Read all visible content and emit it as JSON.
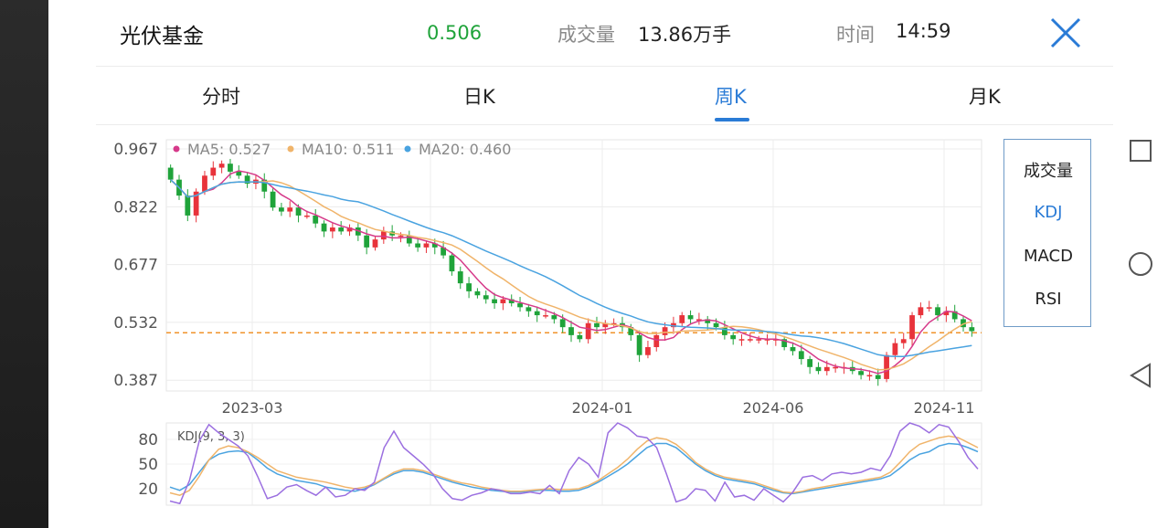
{
  "header": {
    "title": "光伏基金",
    "price": "0.506",
    "volume_label": "成交量",
    "volume_value": "13.86万手",
    "time_label": "时间",
    "time_value": "14:59"
  },
  "tabs": [
    {
      "label": "分时"
    },
    {
      "label": "日K"
    },
    {
      "label": "周K",
      "active": true
    },
    {
      "label": "月K"
    }
  ],
  "indicators": [
    {
      "label": "成交量"
    },
    {
      "label": "KDJ",
      "active": true
    },
    {
      "label": "MACD"
    },
    {
      "label": "RSI"
    }
  ],
  "colors": {
    "up": "#e8333b",
    "down": "#1fa33a",
    "ma5": "#d63a8a",
    "ma10": "#f0b46a",
    "ma20": "#4aa3e0",
    "k": "#4aa3e0",
    "d": "#f0b46a",
    "j": "#9b6fe0",
    "accent": "#2a7bd6",
    "ref_line": "#f0932b"
  },
  "chart_data": [
    {
      "type": "candlestick",
      "y_ticks": [
        "0.967",
        "0.822",
        "0.677",
        "0.532",
        "0.387"
      ],
      "ylim": [
        0.36,
        0.99
      ],
      "x_ticks": [
        "2023-03",
        "2024-01",
        "2024-06",
        "2024-11"
      ],
      "legend": [
        {
          "name": "MA5",
          "value": "0.527"
        },
        {
          "name": "MA10",
          "value": "0.511"
        },
        {
          "name": "MA20",
          "value": "0.460"
        }
      ],
      "reference_price": 0.506,
      "closes": [
        0.89,
        0.85,
        0.8,
        0.86,
        0.9,
        0.92,
        0.93,
        0.91,
        0.9,
        0.88,
        0.89,
        0.86,
        0.82,
        0.81,
        0.82,
        0.8,
        0.8,
        0.78,
        0.76,
        0.77,
        0.76,
        0.77,
        0.75,
        0.72,
        0.74,
        0.76,
        0.75,
        0.75,
        0.73,
        0.72,
        0.73,
        0.72,
        0.7,
        0.66,
        0.63,
        0.61,
        0.6,
        0.59,
        0.58,
        0.59,
        0.58,
        0.57,
        0.56,
        0.55,
        0.55,
        0.54,
        0.52,
        0.5,
        0.49,
        0.53,
        0.52,
        0.53,
        0.53,
        0.52,
        0.5,
        0.45,
        0.47,
        0.5,
        0.52,
        0.53,
        0.55,
        0.54,
        0.54,
        0.53,
        0.52,
        0.5,
        0.49,
        0.49,
        0.49,
        0.49,
        0.49,
        0.49,
        0.47,
        0.46,
        0.44,
        0.42,
        0.41,
        0.42,
        0.42,
        0.42,
        0.41,
        0.4,
        0.4,
        0.39,
        0.45,
        0.48,
        0.49,
        0.55,
        0.57,
        0.57,
        0.55,
        0.56,
        0.54,
        0.52,
        0.51
      ]
    },
    {
      "type": "line",
      "title": "KDJ(9, 3, 3)",
      "y_ticks": [
        "80",
        "50",
        "20"
      ],
      "ylim": [
        0,
        100
      ],
      "series": [
        {
          "name": "K",
          "values": [
            22,
            18,
            25,
            40,
            55,
            62,
            65,
            66,
            64,
            55,
            45,
            38,
            34,
            30,
            28,
            26,
            22,
            20,
            18,
            17,
            20,
            25,
            32,
            38,
            42,
            42,
            40,
            36,
            32,
            28,
            25,
            22,
            20,
            18,
            17,
            16,
            16,
            17,
            18,
            18,
            17,
            17,
            18,
            22,
            28,
            35,
            42,
            50,
            60,
            70,
            75,
            75,
            70,
            60,
            50,
            42,
            36,
            32,
            30,
            28,
            26,
            22,
            18,
            15,
            14,
            16,
            18,
            20,
            22,
            24,
            26,
            28,
            30,
            32,
            36,
            45,
            55,
            62,
            65,
            72,
            75,
            74,
            70,
            65
          ]
        },
        {
          "name": "D",
          "values": [
            15,
            12,
            18,
            35,
            55,
            68,
            72,
            70,
            65,
            58,
            50,
            42,
            38,
            34,
            32,
            30,
            28,
            25,
            22,
            20,
            22,
            26,
            33,
            40,
            44,
            44,
            42,
            38,
            34,
            30,
            27,
            25,
            22,
            20,
            18,
            17,
            17,
            18,
            19,
            20,
            19,
            19,
            20,
            24,
            30,
            38,
            46,
            56,
            68,
            78,
            82,
            80,
            74,
            64,
            52,
            44,
            38,
            34,
            32,
            30,
            28,
            24,
            20,
            16,
            15,
            17,
            20,
            22,
            24,
            26,
            28,
            30,
            32,
            34,
            40,
            52,
            65,
            74,
            78,
            82,
            84,
            82,
            76,
            70
          ]
        },
        {
          "name": "J",
          "values": [
            5,
            2,
            30,
            78,
            98,
            88,
            80,
            72,
            60,
            35,
            8,
            12,
            22,
            25,
            18,
            12,
            22,
            10,
            12,
            20,
            18,
            28,
            70,
            90,
            70,
            60,
            50,
            38,
            20,
            8,
            6,
            12,
            15,
            20,
            18,
            14,
            14,
            16,
            14,
            24,
            14,
            42,
            58,
            50,
            34,
            88,
            100,
            94,
            84,
            82,
            70,
            38,
            4,
            8,
            20,
            18,
            5,
            28,
            10,
            12,
            6,
            20,
            12,
            4,
            16,
            34,
            36,
            30,
            38,
            40,
            38,
            40,
            45,
            42,
            60,
            90,
            100,
            96,
            88,
            98,
            95,
            78,
            58,
            44
          ]
        }
      ]
    }
  ]
}
